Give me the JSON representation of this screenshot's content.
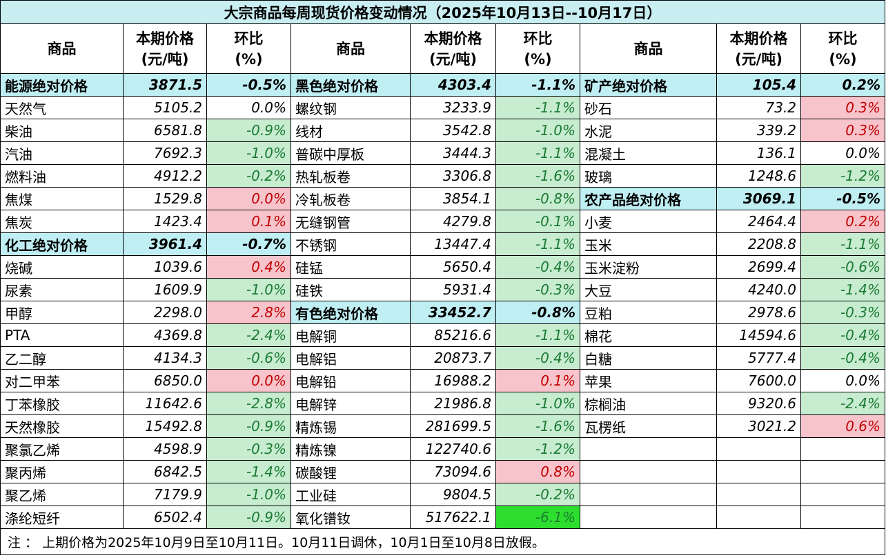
{
  "title": "大宗商品每周现货价格变动情况（2025年10月13日--10月17日）",
  "headers": {
    "name": "商品",
    "price_line1": "本期价格",
    "price_line2": "(元/吨)",
    "chg_line1": "环比",
    "chg_line2": "(%)"
  },
  "note": "注 ： 上期价格为2025年10月9日至10月11日。10月11日调休，10月1日至10月8日放假。",
  "colors": {
    "up_bg": "#f8c4cc",
    "up_text": "#c00000",
    "down_bg": "#c7ecd0",
    "down_text": "#1a7a33",
    "category_bg": "#bfeef3",
    "strong_down_bg": "#2ede2e"
  },
  "col1": [
    {
      "name": "能源绝对价格",
      "price": "3871.5",
      "chg": "-0.5%",
      "style": "hl"
    },
    {
      "name": "天然气",
      "price": "5105.2",
      "chg": "0.0%",
      "style": "flat"
    },
    {
      "name": "柴油",
      "price": "6581.8",
      "chg": "-0.9%",
      "style": "down"
    },
    {
      "name": "汽油",
      "price": "7692.3",
      "chg": "-1.0%",
      "style": "down"
    },
    {
      "name": "燃料油",
      "price": "4912.2",
      "chg": "-0.2%",
      "style": "down"
    },
    {
      "name": "焦煤",
      "price": "1529.8",
      "chg": "0.0%",
      "style": "up"
    },
    {
      "name": "焦炭",
      "price": "1423.4",
      "chg": "0.1%",
      "style": "up"
    },
    {
      "name": "化工绝对价格",
      "price": "3961.4",
      "chg": "-0.7%",
      "style": "hl"
    },
    {
      "name": "烧碱",
      "price": "1039.6",
      "chg": "0.4%",
      "style": "up"
    },
    {
      "name": "尿素",
      "price": "1609.9",
      "chg": "-1.0%",
      "style": "down"
    },
    {
      "name": "甲醇",
      "price": "2298.0",
      "chg": "2.8%",
      "style": "up"
    },
    {
      "name": "PTA",
      "price": "4369.8",
      "chg": "-2.4%",
      "style": "down"
    },
    {
      "name": "乙二醇",
      "price": "4134.3",
      "chg": "-0.6%",
      "style": "down"
    },
    {
      "name": "对二甲苯",
      "price": "6850.0",
      "chg": "0.0%",
      "style": "up"
    },
    {
      "name": "丁苯橡胶",
      "price": "11642.6",
      "chg": "-2.8%",
      "style": "down"
    },
    {
      "name": "天然橡胶",
      "price": "15492.8",
      "chg": "-0.9%",
      "style": "down"
    },
    {
      "name": "聚氯乙烯",
      "price": "4598.9",
      "chg": "-0.3%",
      "style": "down"
    },
    {
      "name": "聚丙烯",
      "price": "6842.5",
      "chg": "-1.4%",
      "style": "down"
    },
    {
      "name": "聚乙烯",
      "price": "7179.9",
      "chg": "-1.0%",
      "style": "down"
    },
    {
      "name": "涤纶短纤",
      "price": "6502.4",
      "chg": "-0.9%",
      "style": "down"
    }
  ],
  "col2": [
    {
      "name": "黑色绝对价格",
      "price": "4303.4",
      "chg": "-1.1%",
      "style": "hl"
    },
    {
      "name": "螺纹钢",
      "price": "3233.9",
      "chg": "-1.1%",
      "style": "down"
    },
    {
      "name": "线材",
      "price": "3542.8",
      "chg": "-1.0%",
      "style": "down"
    },
    {
      "name": "普碳中厚板",
      "price": "3444.3",
      "chg": "-1.1%",
      "style": "down"
    },
    {
      "name": "热轧板卷",
      "price": "3306.8",
      "chg": "-1.6%",
      "style": "down"
    },
    {
      "name": "冷轧板卷",
      "price": "3854.1",
      "chg": "-0.8%",
      "style": "down"
    },
    {
      "name": "无缝钢管",
      "price": "4279.8",
      "chg": "-0.1%",
      "style": "down"
    },
    {
      "name": "不锈钢",
      "price": "13447.4",
      "chg": "-1.1%",
      "style": "down"
    },
    {
      "name": "硅锰",
      "price": "5650.4",
      "chg": "-0.4%",
      "style": "down"
    },
    {
      "name": "硅铁",
      "price": "5931.4",
      "chg": "-0.3%",
      "style": "down"
    },
    {
      "name": "有色绝对价格",
      "price": "33452.7",
      "chg": "-0.8%",
      "style": "hl"
    },
    {
      "name": "电解铜",
      "price": "85216.6",
      "chg": "-1.1%",
      "style": "down"
    },
    {
      "name": "电解铝",
      "price": "20873.7",
      "chg": "-0.4%",
      "style": "down"
    },
    {
      "name": "电解铅",
      "price": "16988.2",
      "chg": "0.1%",
      "style": "up"
    },
    {
      "name": "电解锌",
      "price": "21986.8",
      "chg": "-1.0%",
      "style": "down"
    },
    {
      "name": "精炼锡",
      "price": "281699.5",
      "chg": "-1.6%",
      "style": "down"
    },
    {
      "name": "精炼镍",
      "price": "122740.6",
      "chg": "-1.2%",
      "style": "down"
    },
    {
      "name": "碳酸锂",
      "price": "73094.6",
      "chg": "0.8%",
      "style": "up"
    },
    {
      "name": "工业硅",
      "price": "9804.5",
      "chg": "-0.2%",
      "style": "down"
    },
    {
      "name": "氧化镨钕",
      "price": "517622.1",
      "chg": "-6.1%",
      "style": "strong-down"
    }
  ],
  "col3": [
    {
      "name": "矿产绝对价格",
      "price": "105.4",
      "chg": "0.2%",
      "style": "hl"
    },
    {
      "name": "砂石",
      "price": "73.2",
      "chg": "0.3%",
      "style": "up"
    },
    {
      "name": "水泥",
      "price": "339.2",
      "chg": "0.3%",
      "style": "up"
    },
    {
      "name": "混凝土",
      "price": "136.1",
      "chg": "0.0%",
      "style": "flat"
    },
    {
      "name": "玻璃",
      "price": "1248.6",
      "chg": "-1.2%",
      "style": "down"
    },
    {
      "name": "农产品绝对价格",
      "price": "3069.1",
      "chg": "-0.5%",
      "style": "hl"
    },
    {
      "name": "小麦",
      "price": "2464.4",
      "chg": "0.2%",
      "style": "up"
    },
    {
      "name": "玉米",
      "price": "2208.8",
      "chg": "-1.1%",
      "style": "down"
    },
    {
      "name": "玉米淀粉",
      "price": "2699.4",
      "chg": "-0.6%",
      "style": "down"
    },
    {
      "name": "大豆",
      "price": "4240.0",
      "chg": "-1.4%",
      "style": "down"
    },
    {
      "name": "豆粕",
      "price": "2978.6",
      "chg": "-0.3%",
      "style": "down"
    },
    {
      "name": "棉花",
      "price": "14594.6",
      "chg": "-0.4%",
      "style": "down"
    },
    {
      "name": "白糖",
      "price": "5777.4",
      "chg": "-0.4%",
      "style": "down"
    },
    {
      "name": "苹果",
      "price": "7600.0",
      "chg": "0.0%",
      "style": "flat"
    },
    {
      "name": "棕榈油",
      "price": "9320.6",
      "chg": "-2.4%",
      "style": "down"
    },
    {
      "name": "瓦楞纸",
      "price": "3021.2",
      "chg": "0.6%",
      "style": "up"
    },
    {
      "name": "",
      "price": "",
      "chg": "",
      "style": "empty"
    },
    {
      "name": "",
      "price": "",
      "chg": "",
      "style": "empty"
    },
    {
      "name": "",
      "price": "",
      "chg": "",
      "style": "empty"
    },
    {
      "name": "",
      "price": "",
      "chg": "",
      "style": "empty"
    }
  ]
}
